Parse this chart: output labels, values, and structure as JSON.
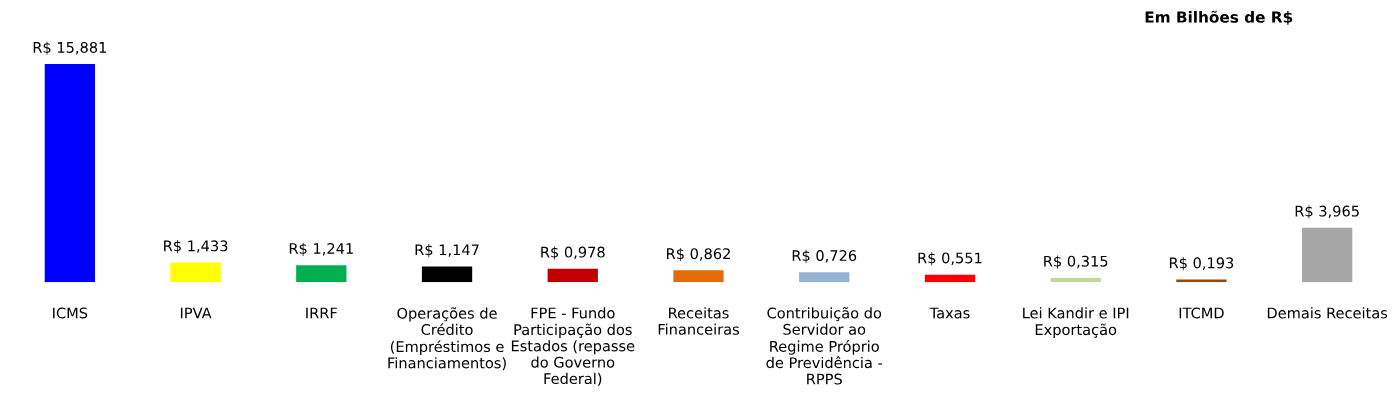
{
  "chart_data": {
    "type": "bar",
    "title": "Em Bilhões de R$",
    "categories": [
      "ICMS",
      "IPVA",
      "IRRF",
      "Operações de\nCrédito\n(Empréstimos e\nFinanciamentos)",
      "FPE - Fundo\nParticipação dos\nEstados (repasse\ndo Governo\nFederal)",
      "Receitas\nFinanceiras",
      "Contribuição do\nServidor ao\nRegime Próprio\nde Previdência -\nRPPS",
      "Taxas",
      "Lei Kandir e IPI\nExportação",
      "ITCMD",
      "Demais Receitas"
    ],
    "values": [
      15.881,
      1.433,
      1.241,
      1.147,
      0.978,
      0.862,
      0.726,
      0.551,
      0.315,
      0.193,
      3.965
    ],
    "colors": [
      "#0000ff",
      "#ffff00",
      "#00b050",
      "#000000",
      "#c00000",
      "#e36c09",
      "#95b3d7",
      "#ff0000",
      "#c4d79b",
      "#974706",
      "#a6a6a6"
    ],
    "value_labels": [
      "R$ 15,881",
      "R$ 1,433",
      "R$ 1,241",
      "R$ 1,147",
      "R$ 0,978",
      "R$ 0,862",
      "R$ 0,726",
      "R$ 0,551",
      "R$ 0,315",
      "R$ 0,193",
      "R$ 3,965"
    ],
    "grid": false,
    "legend": false
  }
}
